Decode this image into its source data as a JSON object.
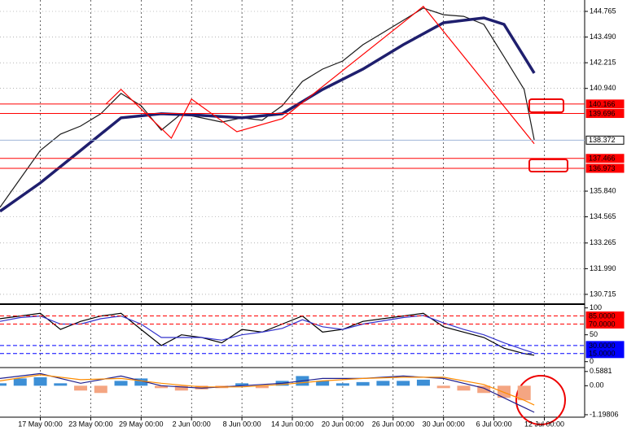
{
  "chart_data": [
    {
      "type": "line",
      "xlim": [
        0,
        116
      ],
      "xticks": [
        {
          "value": 8,
          "label": "17 May 00:00"
        },
        {
          "value": 18,
          "label": "23 May 00:00"
        },
        {
          "value": 28,
          "label": "29 May 00:00"
        },
        {
          "value": 38,
          "label": "2 Jun 00:00"
        },
        {
          "value": 48,
          "label": "8 Jun 00:00"
        },
        {
          "value": 58,
          "label": "14 Jun 00:00"
        },
        {
          "value": 68,
          "label": "20 Jun 00:00"
        },
        {
          "value": 78,
          "label": "26 Jun 00:00"
        },
        {
          "value": 88,
          "label": "30 Jun 00:00"
        },
        {
          "value": 98,
          "label": "6 Jul 00:00"
        },
        {
          "value": 108,
          "label": "12 Jul 00:00"
        }
      ],
      "ylim": [
        130.31,
        145.33
      ],
      "yticks": [
        144.765,
        {
          "value": 143.49,
          "label": "143.490"
        },
        142.215,
        {
          "value": 140.94,
          "label": "140.940"
        },
        {
          "value": 135.84,
          "label": "135.840"
        },
        134.565,
        133.265,
        {
          "value": 131.99,
          "label": "131.990"
        },
        130.715
      ],
      "grid": true,
      "levels": [
        {
          "value": 140.166,
          "label": "140.166",
          "color": "#ff0000"
        },
        {
          "value": 139.696,
          "label": "139.696",
          "color": "#ff0000"
        },
        {
          "value": 138.372,
          "label": "138.372",
          "color": "#9fb4d8"
        },
        {
          "value": 137.466,
          "label": "137.466",
          "color": "#ff0000"
        },
        {
          "value": 136.973,
          "label": "136.973",
          "color": "#ff0000"
        }
      ],
      "series": [
        {
          "color": "#1b1b1b",
          "x": [
            0,
            4,
            8,
            12,
            16,
            20,
            24,
            28,
            32,
            36,
            40,
            44,
            48,
            52,
            56,
            60,
            64,
            68,
            72,
            76,
            80,
            84,
            88,
            92,
            96,
            100,
            104,
            106
          ],
          "values": [
            135.04,
            136.45,
            137.86,
            138.67,
            139.07,
            139.68,
            140.69,
            140.08,
            138.87,
            139.68,
            139.48,
            139.27,
            139.48,
            139.36,
            140.08,
            141.29,
            141.9,
            142.3,
            143.11,
            143.71,
            144.32,
            144.93,
            144.6,
            144.52,
            144.12,
            142.51,
            140.89,
            138.38
          ]
        },
        {
          "color": "#1f1f6e",
          "x": [
            0,
            8,
            16,
            24,
            32,
            40,
            48,
            56,
            64,
            72,
            80,
            88,
            96,
            100,
            104,
            106
          ],
          "values": [
            134.84,
            136.25,
            137.86,
            139.48,
            139.68,
            139.6,
            139.48,
            139.68,
            140.89,
            141.9,
            143.11,
            144.2,
            144.44,
            144.12,
            142.51,
            141.7
          ]
        },
        {
          "color": "#ff0000",
          "x": [
            21,
            24,
            34,
            38,
            47,
            56,
            84,
            106
          ],
          "values": [
            140.16,
            140.89,
            138.47,
            140.41,
            138.79,
            139.44,
            145.01,
            138.19
          ]
        }
      ]
    },
    {
      "type": "line",
      "xlim": [
        0,
        116
      ],
      "ylim": [
        -8,
        104
      ],
      "yticks": [
        100,
        50,
        0
      ],
      "levels": [
        {
          "value": 85,
          "label": "85.0000",
          "color": "#ff0000"
        },
        {
          "value": 70,
          "label": "70.0000",
          "color": "#ff0000"
        },
        {
          "value": 30,
          "label": "30.0000",
          "color": "#0000ff"
        },
        {
          "value": 15,
          "label": "15.0000",
          "color": "#0000ff"
        }
      ],
      "series": [
        {
          "color": "#000000",
          "x": [
            0,
            4,
            8,
            12,
            16,
            20,
            24,
            28,
            32,
            36,
            40,
            44,
            48,
            52,
            56,
            60,
            64,
            68,
            72,
            76,
            80,
            84,
            88,
            92,
            96,
            100,
            104,
            106
          ],
          "values": [
            80,
            85,
            90,
            60,
            75,
            85,
            90,
            60,
            30,
            50,
            45,
            35,
            60,
            55,
            70,
            85,
            55,
            60,
            75,
            80,
            85,
            90,
            65,
            55,
            45,
            25,
            15,
            12
          ]
        },
        {
          "color": "#3333cc",
          "x": [
            0,
            4,
            8,
            12,
            16,
            20,
            24,
            28,
            32,
            36,
            40,
            44,
            48,
            52,
            56,
            60,
            64,
            68,
            72,
            76,
            80,
            84,
            88,
            92,
            96,
            100,
            104,
            106
          ],
          "values": [
            75,
            82,
            85,
            70,
            70,
            80,
            85,
            70,
            45,
            45,
            45,
            40,
            50,
            55,
            62,
            78,
            65,
            60,
            70,
            76,
            82,
            86,
            72,
            60,
            50,
            35,
            22,
            16
          ]
        }
      ]
    },
    {
      "type": "bar",
      "xlim": [
        0,
        116
      ],
      "ylim": [
        -1.3,
        0.75
      ],
      "yticks": [
        0.5881,
        {
          "value": 0,
          "label": "0.00"
        },
        -1.19806
      ],
      "color": "#3d8fd6",
      "negative_color": "#f4a582",
      "x": [
        0,
        4,
        8,
        12,
        16,
        20,
        24,
        28,
        32,
        36,
        40,
        44,
        48,
        52,
        56,
        60,
        64,
        68,
        72,
        76,
        80,
        84,
        88,
        92,
        96,
        100,
        104
      ],
      "values": [
        0.1,
        0.3,
        0.35,
        0.1,
        -0.2,
        -0.3,
        0.2,
        0.3,
        -0.1,
        -0.2,
        -0.15,
        -0.1,
        0.1,
        -0.1,
        0.2,
        0.4,
        0.2,
        0.1,
        0.15,
        0.2,
        0.2,
        0.25,
        -0.1,
        -0.2,
        -0.3,
        -0.5,
        -0.6
      ],
      "series": [
        {
          "color": "#1f1f8e",
          "x": [
            0,
            8,
            16,
            24,
            32,
            40,
            48,
            56,
            64,
            72,
            80,
            88,
            96,
            104,
            106
          ],
          "values": [
            0.3,
            0.5,
            0.1,
            0.4,
            0,
            -0.1,
            0,
            0.1,
            0.3,
            0.3,
            0.4,
            0.3,
            -0.1,
            -0.9,
            -1.1
          ]
        },
        {
          "color": "#ff8c00",
          "x": [
            0,
            8,
            16,
            24,
            32,
            40,
            48,
            56,
            64,
            72,
            80,
            88,
            96,
            104,
            106
          ],
          "values": [
            0.2,
            0.45,
            0.25,
            0.3,
            0.1,
            -0.05,
            -0.05,
            0.05,
            0.2,
            0.3,
            0.35,
            0.35,
            0.05,
            -0.6,
            -0.8
          ]
        }
      ]
    }
  ]
}
